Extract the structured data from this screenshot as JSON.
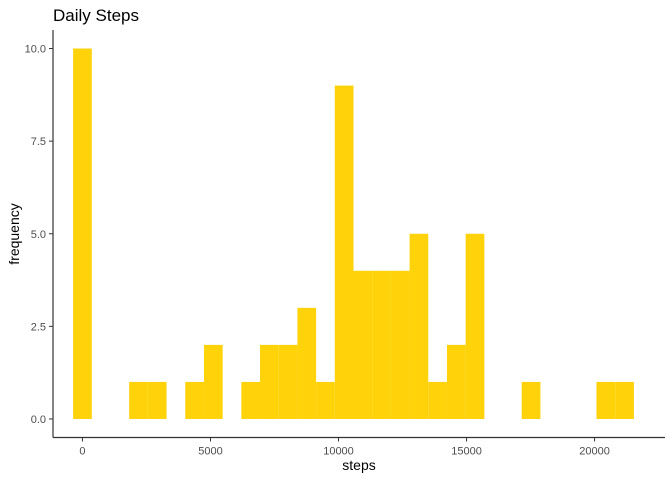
{
  "chart_data": {
    "type": "bar",
    "title": "Daily Steps",
    "xlabel": "steps",
    "ylabel": "frequency",
    "bar_color": "#FFD20A",
    "xlim": [
      -1150,
      22750
    ],
    "ylim": [
      -0.5,
      10.5
    ],
    "x_ticks": [
      {
        "value": 0,
        "label": "0"
      },
      {
        "value": 5000,
        "label": "5000"
      },
      {
        "value": 10000,
        "label": "10000"
      },
      {
        "value": 15000,
        "label": "15000"
      },
      {
        "value": 20000,
        "label": "20000"
      }
    ],
    "y_ticks": [
      {
        "value": 0,
        "label": "0.0"
      },
      {
        "value": 2.5,
        "label": "2.5"
      },
      {
        "value": 5,
        "label": "5.0"
      },
      {
        "value": 7.5,
        "label": "7.5"
      },
      {
        "value": 10,
        "label": "10.0"
      }
    ],
    "bins": [
      {
        "x0": -365,
        "x1": 365,
        "count": 10
      },
      {
        "x0": 1825,
        "x1": 2555,
        "count": 1
      },
      {
        "x0": 2555,
        "x1": 3285,
        "count": 1
      },
      {
        "x0": 4015,
        "x1": 4745,
        "count": 1
      },
      {
        "x0": 4745,
        "x1": 5475,
        "count": 2
      },
      {
        "x0": 6205,
        "x1": 6935,
        "count": 1
      },
      {
        "x0": 6935,
        "x1": 7665,
        "count": 2
      },
      {
        "x0": 7665,
        "x1": 8395,
        "count": 2
      },
      {
        "x0": 8395,
        "x1": 9125,
        "count": 3
      },
      {
        "x0": 9125,
        "x1": 9855,
        "count": 1
      },
      {
        "x0": 9855,
        "x1": 10585,
        "count": 9
      },
      {
        "x0": 10585,
        "x1": 11315,
        "count": 4
      },
      {
        "x0": 11315,
        "x1": 12045,
        "count": 4
      },
      {
        "x0": 12045,
        "x1": 12775,
        "count": 4
      },
      {
        "x0": 12775,
        "x1": 13505,
        "count": 5
      },
      {
        "x0": 13505,
        "x1": 14235,
        "count": 1
      },
      {
        "x0": 14235,
        "x1": 14965,
        "count": 2
      },
      {
        "x0": 14965,
        "x1": 15695,
        "count": 5
      },
      {
        "x0": 17155,
        "x1": 17885,
        "count": 1
      },
      {
        "x0": 20075,
        "x1": 20805,
        "count": 1
      },
      {
        "x0": 20805,
        "x1": 21535,
        "count": 1
      }
    ]
  }
}
